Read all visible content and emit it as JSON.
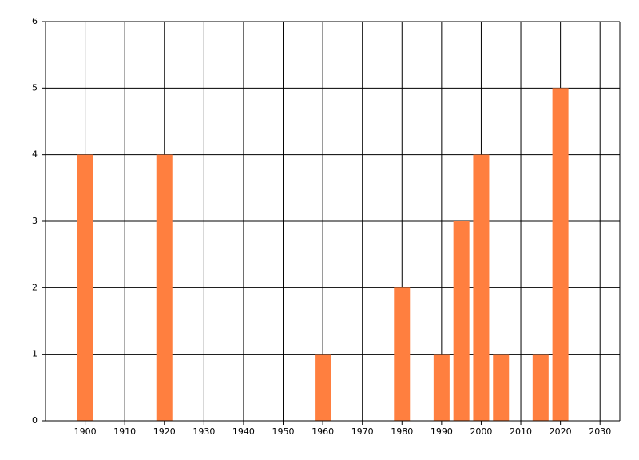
{
  "chart_data": {
    "type": "bar",
    "x": [
      1900,
      1920,
      1960,
      1980,
      1990,
      1995,
      2000,
      2005,
      2015,
      2020
    ],
    "values": [
      4,
      4,
      1,
      2,
      1,
      3,
      4,
      1,
      1,
      5
    ],
    "color": "#ff7f3f",
    "xlim": [
      1890,
      2035
    ],
    "xticks": [
      1900,
      1910,
      1920,
      1930,
      1940,
      1950,
      1960,
      1970,
      1980,
      1990,
      2000,
      2010,
      2020,
      2030
    ],
    "ylim": [
      0,
      6
    ],
    "yticks": [
      0,
      1,
      2,
      3,
      4,
      5,
      6
    ],
    "grid": true
  }
}
